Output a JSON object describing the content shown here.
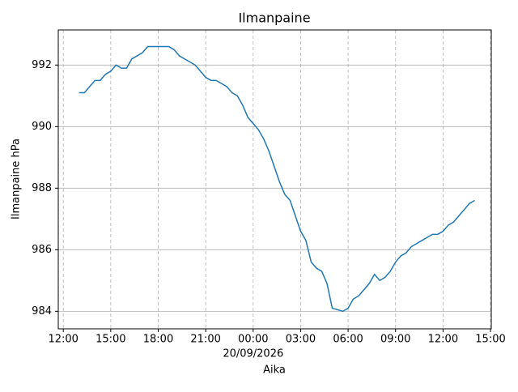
{
  "chart_data": {
    "type": "line",
    "title": "Ilmanpaine",
    "x_label": "Aika",
    "y_label": "Ilmanpaine hPa",
    "x_date_label": "20/09/2026",
    "x": [
      "2026-09-19T13:00",
      "2026-09-19T13:20",
      "2026-09-19T13:40",
      "2026-09-19T14:00",
      "2026-09-19T14:20",
      "2026-09-19T14:40",
      "2026-09-19T15:00",
      "2026-09-19T15:20",
      "2026-09-19T15:40",
      "2026-09-19T16:00",
      "2026-09-19T16:20",
      "2026-09-19T16:40",
      "2026-09-19T17:00",
      "2026-09-19T17:20",
      "2026-09-19T17:40",
      "2026-09-19T18:00",
      "2026-09-19T18:20",
      "2026-09-19T18:40",
      "2026-09-19T19:00",
      "2026-09-19T19:20",
      "2026-09-19T19:40",
      "2026-09-19T20:00",
      "2026-09-19T20:20",
      "2026-09-19T20:40",
      "2026-09-19T21:00",
      "2026-09-19T21:20",
      "2026-09-19T21:40",
      "2026-09-19T22:00",
      "2026-09-19T22:20",
      "2026-09-19T22:40",
      "2026-09-19T23:00",
      "2026-09-19T23:20",
      "2026-09-19T23:40",
      "2026-09-20T00:00",
      "2026-09-20T00:20",
      "2026-09-20T00:40",
      "2026-09-20T01:00",
      "2026-09-20T01:20",
      "2026-09-20T01:40",
      "2026-09-20T02:00",
      "2026-09-20T02:20",
      "2026-09-20T02:40",
      "2026-09-20T03:00",
      "2026-09-20T03:20",
      "2026-09-20T03:40",
      "2026-09-20T04:00",
      "2026-09-20T04:20",
      "2026-09-20T04:40",
      "2026-09-20T05:00",
      "2026-09-20T05:20",
      "2026-09-20T05:40",
      "2026-09-20T06:00",
      "2026-09-20T06:20",
      "2026-09-20T06:40",
      "2026-09-20T07:00",
      "2026-09-20T07:20",
      "2026-09-20T07:40",
      "2026-09-20T08:00",
      "2026-09-20T08:20",
      "2026-09-20T08:40",
      "2026-09-20T09:00",
      "2026-09-20T09:20",
      "2026-09-20T09:40",
      "2026-09-20T10:00",
      "2026-09-20T10:20",
      "2026-09-20T10:40",
      "2026-09-20T11:00",
      "2026-09-20T11:20",
      "2026-09-20T11:40",
      "2026-09-20T12:00",
      "2026-09-20T12:20",
      "2026-09-20T12:40",
      "2026-09-20T13:00",
      "2026-09-20T13:20",
      "2026-09-20T13:40",
      "2026-09-20T14:00"
    ],
    "series": [
      {
        "name": "Ilmanpaine",
        "color": "#1f77b4",
        "values": [
          991.1,
          991.1,
          991.3,
          991.5,
          991.5,
          991.7,
          991.8,
          992.0,
          991.9,
          991.9,
          992.2,
          992.3,
          992.4,
          992.6,
          992.6,
          992.6,
          992.6,
          992.6,
          992.5,
          992.3,
          992.2,
          992.1,
          992.0,
          991.8,
          991.6,
          991.5,
          991.5,
          991.4,
          991.3,
          991.1,
          991.0,
          990.7,
          990.3,
          990.1,
          989.9,
          989.6,
          989.2,
          988.7,
          988.2,
          987.8,
          987.6,
          987.1,
          986.6,
          986.3,
          985.6,
          985.4,
          985.3,
          984.9,
          984.1,
          984.05,
          984.0,
          984.1,
          984.4,
          984.5,
          984.7,
          984.9,
          985.2,
          985.0,
          985.1,
          985.3,
          985.6,
          985.8,
          985.9,
          986.1,
          986.2,
          986.3,
          986.4,
          986.5,
          986.5,
          986.6,
          986.8,
          986.9,
          987.1,
          987.3,
          987.5,
          987.6
        ]
      }
    ],
    "xlim": [
      "2026-09-19T11:41",
      "2026-09-20T15:03"
    ],
    "xticks": [
      {
        "value": "2026-09-19T12:00",
        "label": "12:00"
      },
      {
        "value": "2026-09-19T15:00",
        "label": "15:00"
      },
      {
        "value": "2026-09-19T18:00",
        "label": "18:00"
      },
      {
        "value": "2026-09-19T21:00",
        "label": "21:00"
      },
      {
        "value": "2026-09-20T00:00",
        "label": "00:00"
      },
      {
        "value": "2026-09-20T03:00",
        "label": "03:00"
      },
      {
        "value": "2026-09-20T06:00",
        "label": "06:00"
      },
      {
        "value": "2026-09-20T09:00",
        "label": "09:00"
      },
      {
        "value": "2026-09-20T12:00",
        "label": "12:00"
      },
      {
        "value": "2026-09-20T15:00",
        "label": "15:00"
      }
    ],
    "ylim": [
      983.43,
      993.14
    ],
    "yticks": [
      984,
      986,
      988,
      990,
      992
    ],
    "grid": true
  }
}
